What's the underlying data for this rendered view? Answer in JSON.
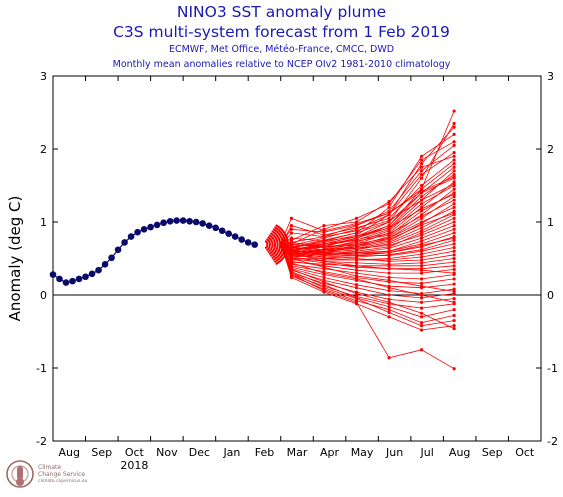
{
  "titles": {
    "line1": "NINO3 SST anomaly plume",
    "line2": "C3S multi-system forecast from 1 Feb 2019",
    "line3": "ECMWF, Met Office, Météo-France, CMCC, DWD",
    "line4": "Monthly mean anomalies relative to NCEP OIv2 1981-2010 climatology"
  },
  "logo": {
    "line1": "Climate",
    "line2": "Change Service",
    "line3": "climate.copernicus.eu"
  },
  "colors": {
    "observed": "#0a0a6a",
    "forecast": "#ff0000",
    "title": "#1a1ab0"
  },
  "chart_data": {
    "type": "line",
    "title": "NINO3 SST anomaly plume",
    "ylabel": "Anomaly (deg C)",
    "xlabel": "",
    "ylim": [
      -2,
      3
    ],
    "yticks": [
      -2,
      -1,
      0,
      1,
      2,
      3
    ],
    "xticks": [
      "Aug",
      "Sep",
      "Oct",
      "Nov",
      "Dec",
      "Jan",
      "Feb",
      "Mar",
      "Apr",
      "May",
      "Jun",
      "Jul",
      "Aug",
      "Sep",
      "Oct"
    ],
    "year_label": "2018",
    "x_range": [
      0,
      15
    ],
    "zero_line": true,
    "observed": {
      "name": "observed",
      "x": [
        0.0,
        0.2,
        0.4,
        0.6,
        0.8,
        1.0,
        1.2,
        1.4,
        1.6,
        1.8,
        2.0,
        2.2,
        2.4,
        2.6,
        2.8,
        3.0,
        3.2,
        3.4,
        3.6,
        3.8,
        4.0,
        4.2,
        4.4,
        4.6,
        4.8,
        5.0,
        5.2,
        5.4,
        5.6,
        5.8,
        6.0,
        6.2
      ],
      "y": [
        0.28,
        0.22,
        0.17,
        0.19,
        0.22,
        0.25,
        0.29,
        0.34,
        0.42,
        0.51,
        0.62,
        0.72,
        0.8,
        0.86,
        0.9,
        0.93,
        0.96,
        0.99,
        1.01,
        1.02,
        1.02,
        1.01,
        1.0,
        0.98,
        0.95,
        0.92,
        0.88,
        0.84,
        0.8,
        0.76,
        0.72,
        0.69
      ]
    },
    "forecast": {
      "name": "forecast members",
      "start_x": 7.0,
      "month_x": [
        7.33,
        8.33,
        9.33,
        10.33,
        11.33,
        12.33
      ],
      "members": [
        [
          0.6,
          0.68,
          0.78,
          0.95,
          1.45,
          2.52
        ],
        [
          0.62,
          0.7,
          0.8,
          1.0,
          1.6,
          2.35
        ],
        [
          0.65,
          0.72,
          0.82,
          1.1,
          1.8,
          2.3
        ],
        [
          0.66,
          0.75,
          0.85,
          1.2,
          1.9,
          2.2
        ],
        [
          0.7,
          0.9,
          1.05,
          1.25,
          1.85,
          2.1
        ],
        [
          0.72,
          0.8,
          0.95,
          1.15,
          1.7,
          2.05
        ],
        [
          0.68,
          0.78,
          0.9,
          1.1,
          1.65,
          1.95
        ],
        [
          0.75,
          0.95,
          1.0,
          1.28,
          1.75,
          1.9
        ],
        [
          0.95,
          0.82,
          0.92,
          1.05,
          1.5,
          1.85
        ],
        [
          1.05,
          0.88,
          0.98,
          1.12,
          1.45,
          1.8
        ],
        [
          0.6,
          0.7,
          0.8,
          0.95,
          1.4,
          1.75
        ],
        [
          0.63,
          0.68,
          0.75,
          0.9,
          1.3,
          1.7
        ],
        [
          0.58,
          0.66,
          0.78,
          0.92,
          1.35,
          1.65
        ],
        [
          0.64,
          0.74,
          0.85,
          1.0,
          1.4,
          1.6
        ],
        [
          0.55,
          0.62,
          0.7,
          0.85,
          1.2,
          1.55
        ],
        [
          0.7,
          0.65,
          0.72,
          0.88,
          1.25,
          1.5
        ],
        [
          0.6,
          0.6,
          0.68,
          0.8,
          1.1,
          1.45
        ],
        [
          0.57,
          0.63,
          0.74,
          0.82,
          1.15,
          1.4
        ],
        [
          0.52,
          0.58,
          0.66,
          0.78,
          1.05,
          1.35
        ],
        [
          0.66,
          0.7,
          0.76,
          0.84,
          1.08,
          1.3
        ],
        [
          0.58,
          0.62,
          0.66,
          0.74,
          0.98,
          1.25
        ],
        [
          0.62,
          0.66,
          0.7,
          0.78,
          1.0,
          1.2
        ],
        [
          0.55,
          0.6,
          0.64,
          0.72,
          0.92,
          1.15
        ],
        [
          0.6,
          0.58,
          0.62,
          0.7,
          0.88,
          1.1
        ],
        [
          0.54,
          0.56,
          0.6,
          0.66,
          0.85,
          1.05
        ],
        [
          0.65,
          0.62,
          0.64,
          0.68,
          0.82,
          1.0
        ],
        [
          0.58,
          0.55,
          0.58,
          0.64,
          0.78,
          0.95
        ],
        [
          0.52,
          0.54,
          0.56,
          0.6,
          0.74,
          0.9
        ],
        [
          0.6,
          0.57,
          0.58,
          0.6,
          0.7,
          0.85
        ],
        [
          0.56,
          0.52,
          0.54,
          0.58,
          0.66,
          0.8
        ],
        [
          0.5,
          0.5,
          0.52,
          0.55,
          0.62,
          0.75
        ],
        [
          0.62,
          0.55,
          0.54,
          0.54,
          0.6,
          0.7
        ],
        [
          0.55,
          0.5,
          0.48,
          0.5,
          0.56,
          0.65
        ],
        [
          0.48,
          0.48,
          0.48,
          0.48,
          0.52,
          0.6
        ],
        [
          0.58,
          0.52,
          0.5,
          0.46,
          0.48,
          0.55
        ],
        [
          0.52,
          0.46,
          0.44,
          0.42,
          0.44,
          0.5
        ],
        [
          0.45,
          0.42,
          0.4,
          0.4,
          0.4,
          0.45
        ],
        [
          0.5,
          0.44,
          0.38,
          0.36,
          0.36,
          0.4
        ],
        [
          0.46,
          0.4,
          0.34,
          0.3,
          0.3,
          0.35
        ],
        [
          0.42,
          0.36,
          0.3,
          0.24,
          0.22,
          0.28
        ],
        [
          0.4,
          0.32,
          0.24,
          0.18,
          0.16,
          0.22
        ],
        [
          0.38,
          0.28,
          0.2,
          0.12,
          0.1,
          0.15
        ],
        [
          0.36,
          0.24,
          0.14,
          0.06,
          0.02,
          0.08
        ],
        [
          0.34,
          0.2,
          0.1,
          0.0,
          -0.04,
          0.02
        ],
        [
          0.3,
          0.16,
          0.04,
          -0.06,
          -0.1,
          -0.05
        ],
        [
          0.28,
          0.12,
          -0.02,
          -0.12,
          -0.18,
          -0.12
        ],
        [
          0.32,
          0.14,
          -0.04,
          -0.16,
          -0.3,
          -0.2
        ],
        [
          0.26,
          0.08,
          -0.08,
          -0.2,
          -0.38,
          -0.28
        ],
        [
          0.3,
          0.1,
          -0.05,
          -0.24,
          -0.42,
          -0.35
        ],
        [
          0.24,
          0.04,
          -0.12,
          -0.3,
          -0.48,
          -0.42
        ],
        [
          0.35,
          0.18,
          0.02,
          -0.1,
          -0.25,
          -0.46
        ],
        [
          0.28,
          0.06,
          -0.1,
          -0.86,
          -0.75,
          -1.01
        ],
        [
          0.44,
          0.3,
          0.22,
          0.1,
          0.0,
          -0.1
        ],
        [
          0.5,
          0.38,
          0.26,
          0.2,
          0.12,
          0.05
        ],
        [
          0.58,
          0.46,
          0.4,
          0.36,
          0.34,
          0.3
        ],
        [
          0.66,
          0.58,
          0.56,
          0.58,
          0.68,
          0.78
        ],
        [
          0.72,
          0.66,
          0.68,
          0.76,
          0.96,
          1.12
        ],
        [
          0.78,
          0.74,
          0.8,
          0.92,
          1.18,
          1.38
        ],
        [
          0.85,
          0.8,
          0.88,
          1.02,
          1.3,
          1.52
        ],
        [
          0.9,
          0.86,
          0.96,
          1.12,
          1.42,
          1.62
        ]
      ]
    }
  }
}
